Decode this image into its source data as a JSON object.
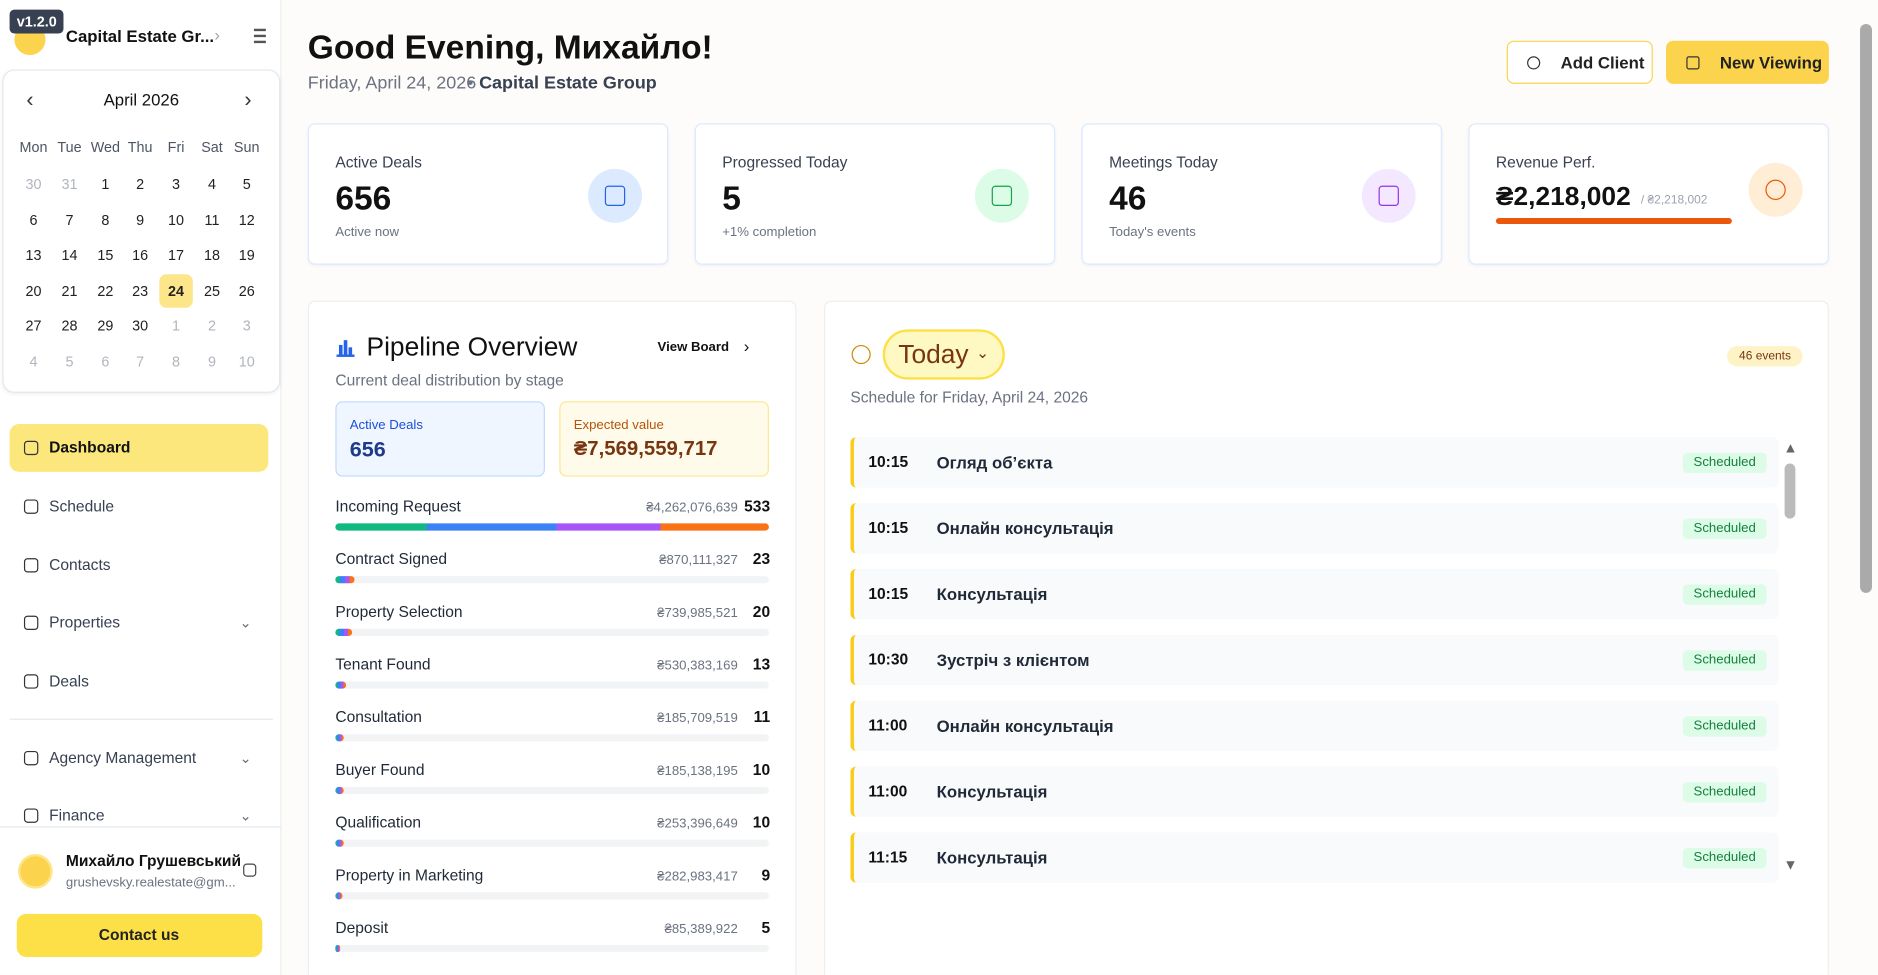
{
  "version": "v1.2.0",
  "sidebar": {
    "company": "Capital Estate Gr...",
    "calendar": {
      "month": "April 2026",
      "weekdays": [
        "Mon",
        "Tue",
        "Wed",
        "Thu",
        "Fri",
        "Sat",
        "Sun"
      ],
      "weeks": [
        [
          30,
          31,
          1,
          2,
          3,
          4,
          5
        ],
        [
          6,
          7,
          8,
          9,
          10,
          11,
          12
        ],
        [
          13,
          14,
          15,
          16,
          17,
          18,
          19
        ],
        [
          20,
          21,
          22,
          23,
          24,
          25,
          26
        ],
        [
          27,
          28,
          29,
          30,
          1,
          2,
          3
        ],
        [
          4,
          5,
          6,
          7,
          8,
          9,
          10
        ]
      ],
      "today": 24
    },
    "nav": [
      {
        "label": "Dashboard",
        "active": true
      },
      {
        "label": "Schedule"
      },
      {
        "label": "Contacts"
      },
      {
        "label": "Properties",
        "expandable": true
      },
      {
        "label": "Deals"
      },
      {
        "label": "Agency Management",
        "expandable": true
      },
      {
        "label": "Finance",
        "expandable": true
      }
    ],
    "user": {
      "name": "Михайло Грушевський",
      "email": "grushevsky.realestate@gm..."
    },
    "contact": "Contact us"
  },
  "header": {
    "greeting": "Good Evening, Михайло!",
    "date": "Friday, April 24, 2026",
    "company": "Capital Estate Group",
    "buttons": [
      "Add Client",
      "New Viewing"
    ]
  },
  "stats": [
    {
      "label": "Active Deals",
      "value": "656",
      "sub": "Active now"
    },
    {
      "label": "Progressed Today",
      "value": "5",
      "sub": "+1% completion"
    },
    {
      "label": "Meetings Today",
      "value": "46",
      "sub": "Today's events"
    },
    {
      "label": "Revenue Perf.",
      "value": "₴2,218,002",
      "sub": "/ ₴2,218,002"
    }
  ],
  "pipeline": {
    "title": "Pipeline Overview",
    "view": "View Board",
    "subtitle": "Current deal distribution by stage",
    "active_label": "Active Deals",
    "active_value": "656",
    "expected_label": "Expected value",
    "expected_value": "₴7,569,559,717",
    "stages": [
      {
        "name": "Incoming Request",
        "amount": "₴4,262,076,639",
        "count": 533
      },
      {
        "name": "Contract Signed",
        "amount": "₴870,111,327",
        "count": 23
      },
      {
        "name": "Property Selection",
        "amount": "₴739,985,521",
        "count": 20
      },
      {
        "name": "Tenant Found",
        "amount": "₴530,383,169",
        "count": 13
      },
      {
        "name": "Consultation",
        "amount": "₴185,709,519",
        "count": 11
      },
      {
        "name": "Buyer Found",
        "amount": "₴185,138,195",
        "count": 10
      },
      {
        "name": "Qualification",
        "amount": "₴253,396,649",
        "count": 10
      },
      {
        "name": "Property in Marketing",
        "amount": "₴282,983,417",
        "count": 9
      },
      {
        "name": "Deposit",
        "amount": "₴85,389,922",
        "count": 5
      }
    ]
  },
  "schedule": {
    "title": "Today",
    "count": "46 events",
    "subtitle": "Schedule for Friday, April 24, 2026",
    "items": [
      {
        "time": "10:15",
        "title": "Огляд об’єкта",
        "status": "Scheduled"
      },
      {
        "time": "10:15",
        "title": "Онлайн консультація",
        "status": "Scheduled"
      },
      {
        "time": "10:15",
        "title": "Консультація",
        "status": "Scheduled"
      },
      {
        "time": "10:30",
        "title": "Зустріч з клієнтом",
        "status": "Scheduled"
      },
      {
        "time": "11:00",
        "title": "Онлайн консультація",
        "status": "Scheduled"
      },
      {
        "time": "11:00",
        "title": "Консультація",
        "status": "Scheduled"
      },
      {
        "time": "11:15",
        "title": "Консультація",
        "status": "Scheduled"
      }
    ]
  }
}
